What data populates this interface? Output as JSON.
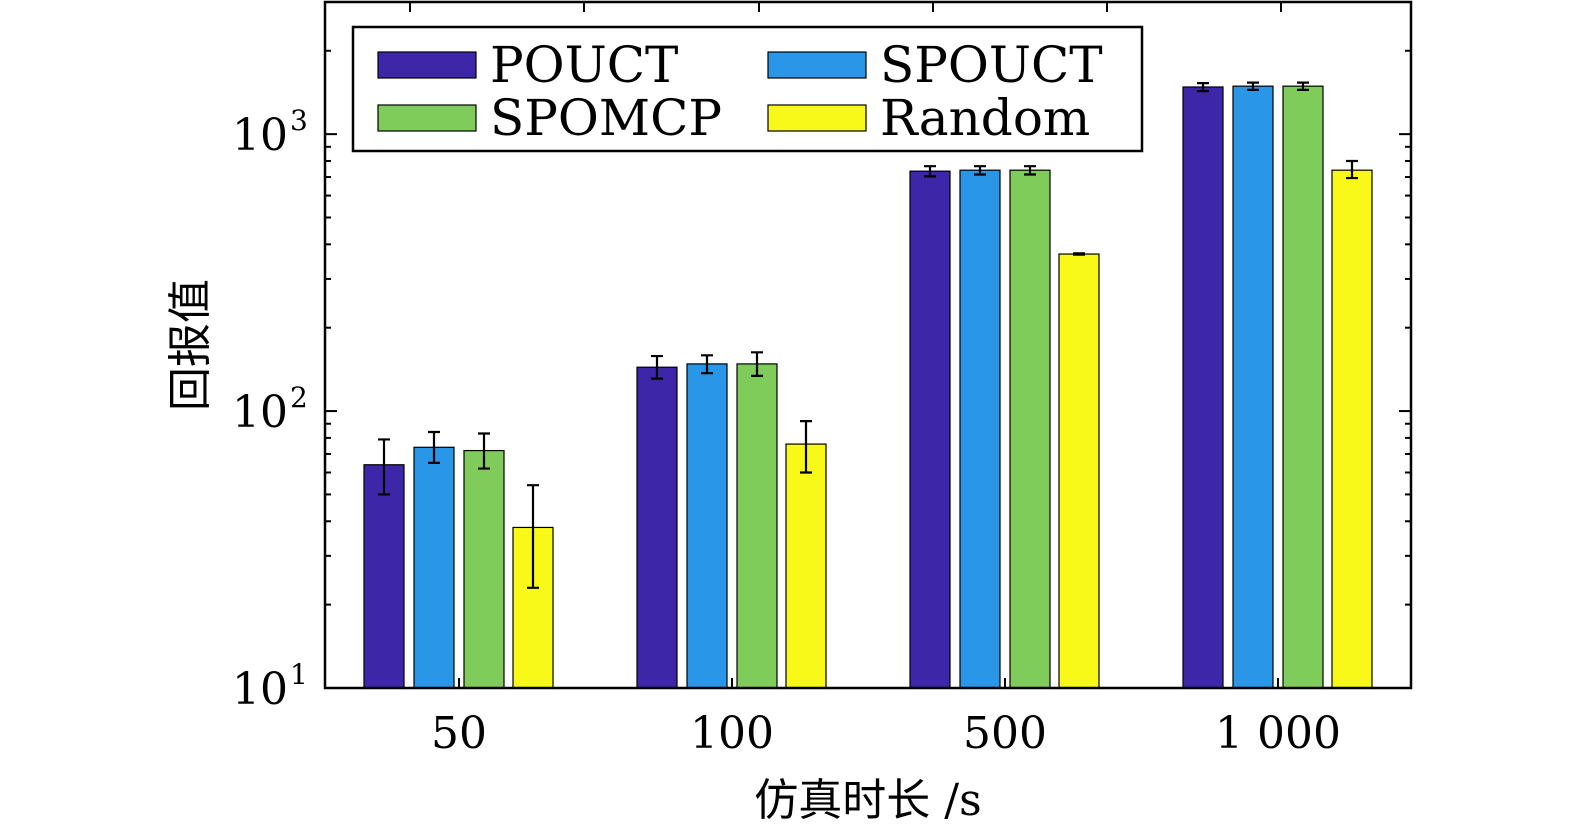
{
  "chart_data": {
    "type": "bar",
    "title": "",
    "xlabel": "仿真时长 /s",
    "ylabel": "回报值",
    "categories": [
      "50",
      "100",
      "500",
      "1 000"
    ],
    "yscale": "log",
    "ylim": [
      10,
      3000
    ],
    "yticks": [
      10,
      100,
      1000
    ],
    "ytick_labels": [
      {
        "base": "10",
        "exp": "1"
      },
      {
        "base": "10",
        "exp": "2"
      },
      {
        "base": "10",
        "exp": "3"
      }
    ],
    "grid": false,
    "legend_position": "top-left",
    "series": [
      {
        "name": "POUCT",
        "color": "#3e26a8",
        "values": [
          64,
          144,
          735,
          1480
        ],
        "err_low": [
          50,
          131,
          704,
          1430
        ],
        "err_high": [
          79,
          158,
          766,
          1528
        ]
      },
      {
        "name": "SPOUCT",
        "color": "#2a96e8",
        "values": [
          74,
          148,
          741,
          1490
        ],
        "err_low": [
          65,
          137,
          715,
          1445
        ],
        "err_high": [
          84,
          159,
          766,
          1535
        ]
      },
      {
        "name": "SPOMCP",
        "color": "#80cc5a",
        "values": [
          72,
          148,
          741,
          1490
        ],
        "err_low": [
          62,
          134,
          715,
          1445
        ],
        "err_high": [
          83,
          163,
          766,
          1535
        ]
      },
      {
        "name": "Random",
        "color": "#f9f919",
        "values": [
          38,
          76,
          369,
          741
        ],
        "err_low": [
          23,
          60,
          367,
          694
        ],
        "err_high": [
          54,
          92,
          371,
          800
        ]
      }
    ]
  }
}
